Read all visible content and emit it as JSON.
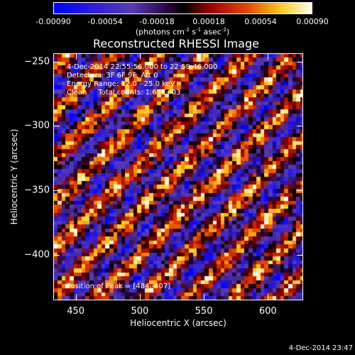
{
  "colorbar": {
    "tick_labels": [
      "-0.00090",
      "-0.00054",
      "-0.00018",
      "0.00018",
      "0.00054",
      "0.00090"
    ],
    "units_prefix": "(photons cm",
    "units_exp1": "-2",
    "units_mid1": " s",
    "units_exp2": "-1",
    "units_mid2": " asec",
    "units_exp3": "-2",
    "units_suffix": ")"
  },
  "chart_data": {
    "type": "heatmap",
    "title": "Reconstructed RHESSI Image",
    "xlabel": "Heliocentric X (arcsec)",
    "ylabel": "Heliocentric Y (arcsec)",
    "xlim": [
      433,
      627
    ],
    "ylim": [
      -435,
      -244
    ],
    "x_ticks": [
      450,
      500,
      550,
      600
    ],
    "y_ticks": [
      -250,
      -300,
      -350,
      -400
    ],
    "value_range": [
      -0.0009,
      0.0009
    ],
    "colormap": "RHESSI red-temperature (blue negative → black → red → yellow → white positive)",
    "annotations": [
      "4-Dec-2014 22:55:56.000 to 22:59:46.000",
      "Detectors: 3F 6F 9F, Att 0",
      "Energy Range: 12.0 - 25.0 keV",
      "Clean     Total counts: 1.67E+03"
    ],
    "peak_label": "Position of Peak = [484,-407]",
    "peak": [
      484,
      -407
    ]
  },
  "footer": {
    "date": "4-Dec-2014 23:47"
  }
}
